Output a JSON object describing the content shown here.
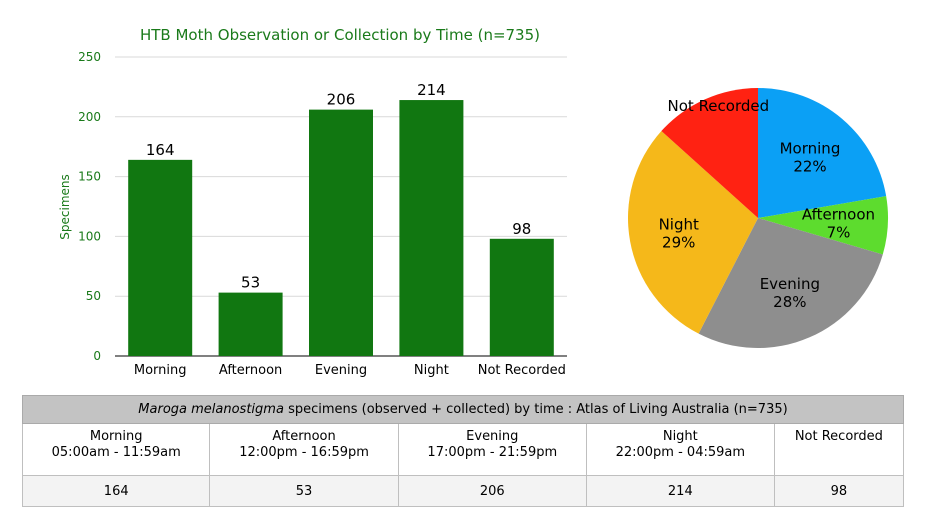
{
  "chart_data": [
    {
      "type": "bar",
      "title": "HTB Moth Observation or Collection by Time (n=735)",
      "xlabel": "",
      "ylabel": "Specimens",
      "categories": [
        "Morning",
        "Afternoon",
        "Evening",
        "Night",
        "Not Recorded"
      ],
      "values": [
        164,
        53,
        206,
        214,
        98
      ],
      "ylim": [
        0,
        250
      ],
      "yticks": [
        0,
        50,
        100,
        150,
        200,
        250
      ],
      "grid": true,
      "colors": {
        "bar": "#117711",
        "title": "#1a7a1a",
        "grid": "#d9d9d9"
      }
    },
    {
      "type": "pie",
      "slices": [
        {
          "label": "Morning",
          "percent": 22,
          "value": 164,
          "color": "#0ba0f5"
        },
        {
          "label": "Afternoon",
          "percent": 7,
          "value": 53,
          "color": "#5ddc2e"
        },
        {
          "label": "Evening",
          "percent": 28,
          "value": 206,
          "color": "#8e8e8e"
        },
        {
          "label": "Night",
          "percent": 29,
          "value": 214,
          "color": "#f5b81a"
        },
        {
          "label": "Not Recorded",
          "percent": null,
          "value": 98,
          "color": "#ff2212"
        }
      ],
      "start": "top",
      "direction": "clockwise"
    }
  ],
  "table": {
    "caption_italic": "Maroga melanostigma",
    "caption_rest": " specimens (observed + collected) by time : Atlas of Living Australia (n=735)",
    "columns": [
      {
        "name": "Morning",
        "range": "05:00am - 11:59am",
        "value": "164"
      },
      {
        "name": "Afternoon",
        "range": "12:00pm - 16:59pm",
        "value": "53"
      },
      {
        "name": "Evening",
        "range": "17:00pm - 21:59pm",
        "value": "206"
      },
      {
        "name": "Night",
        "range": "22:00pm - 04:59am",
        "value": "214"
      },
      {
        "name": "Not Recorded",
        "range": "",
        "value": "98"
      }
    ]
  }
}
